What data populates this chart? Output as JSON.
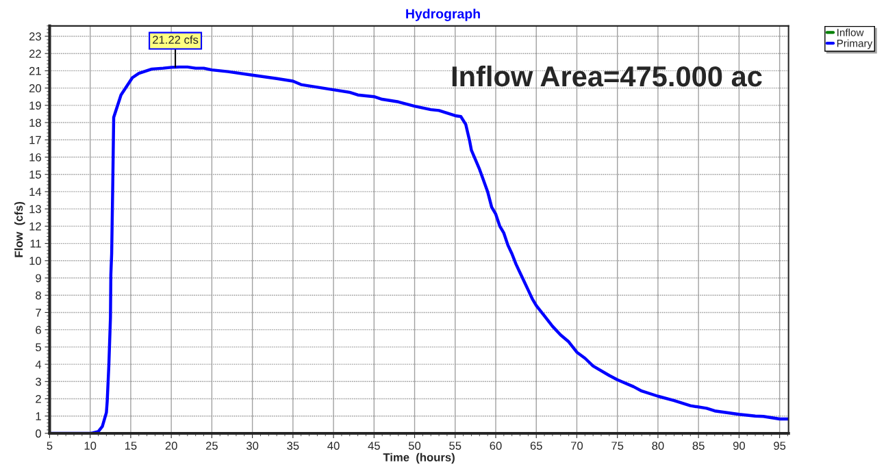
{
  "chart_data": {
    "type": "line",
    "title": "Hydrograph",
    "xlabel": "Time  (hours)",
    "ylabel": "Flow  (cfs)",
    "x": [
      5,
      10,
      10.3,
      11,
      11.5,
      12,
      12.1,
      12.3,
      12.5,
      12.55,
      12.65,
      12.8,
      12.9,
      13.8,
      15.2,
      16,
      17.6,
      19,
      20,
      21,
      22,
      23,
      24,
      25,
      27,
      30,
      33,
      35,
      36,
      40,
      42,
      43,
      45,
      46,
      48,
      50,
      52,
      53,
      55,
      55.7,
      56.3,
      56.8,
      57,
      58,
      59,
      59.5,
      60,
      60.5,
      61,
      61.5,
      62,
      62.5,
      63,
      63.5,
      64,
      64.5,
      65,
      66,
      67,
      68,
      69,
      70,
      71,
      72,
      74,
      75,
      77,
      78,
      80,
      82,
      84,
      86,
      87,
      90,
      92,
      93,
      95,
      96.1
    ],
    "series": [
      {
        "name": "Inflow",
        "color": "#008000",
        "values": [
          null,
          null,
          null,
          null,
          null,
          null,
          null,
          null,
          null,
          null,
          null,
          null,
          null,
          null,
          null,
          null,
          null,
          null,
          null,
          null,
          null,
          null,
          null,
          null,
          null,
          null,
          null,
          null,
          null,
          null,
          null,
          null,
          null,
          null,
          null,
          null,
          null,
          null,
          null,
          null,
          null,
          null,
          null,
          null,
          null,
          null,
          null,
          null,
          null,
          null,
          null,
          null,
          null,
          null,
          null,
          null,
          null,
          null,
          null,
          null,
          null,
          null,
          null,
          null,
          null,
          null,
          null,
          null,
          null,
          null,
          null,
          null,
          null,
          null,
          null,
          null,
          null,
          null
        ]
      },
      {
        "name": "Primary",
        "color": "#0000ff",
        "values": [
          0,
          0,
          0.02,
          0.1,
          0.4,
          1.2,
          1.85,
          3.9,
          6.7,
          9.2,
          10.4,
          14.9,
          18.3,
          19.6,
          20.6,
          20.85,
          21.1,
          21.15,
          21.2,
          21.22,
          21.22,
          21.15,
          21.15,
          21.05,
          20.95,
          20.75,
          20.55,
          20.4,
          20.2,
          19.9,
          19.75,
          19.6,
          19.5,
          19.35,
          19.2,
          18.95,
          18.75,
          18.7,
          18.4,
          18.35,
          17.9,
          16.9,
          16.4,
          15.3,
          14.0,
          13.1,
          12.7,
          12.0,
          11.6,
          10.9,
          10.4,
          9.8,
          9.3,
          8.8,
          8.3,
          7.8,
          7.4,
          6.8,
          6.2,
          5.7,
          5.3,
          4.7,
          4.35,
          3.9,
          3.35,
          3.1,
          2.7,
          2.45,
          2.15,
          1.9,
          1.6,
          1.45,
          1.3,
          1.1,
          1.0,
          0.98,
          0.83,
          0.83
        ]
      }
    ],
    "xlim": [
      5,
      96.1
    ],
    "xticks": [
      5,
      10,
      15,
      20,
      25,
      30,
      35,
      40,
      45,
      50,
      55,
      60,
      65,
      70,
      75,
      80,
      85,
      90,
      95
    ],
    "ylim": [
      0,
      23.6
    ],
    "yticks": [
      0,
      1,
      2,
      3,
      4,
      5,
      6,
      7,
      8,
      9,
      10,
      11,
      12,
      13,
      14,
      15,
      16,
      17,
      18,
      19,
      20,
      21,
      22,
      23
    ],
    "annotations": [
      {
        "text": "21.22 cfs",
        "x": 20.5,
        "y": 21.22
      },
      "Inflow Area=475.000 ac"
    ],
    "grid": true,
    "legend": "top right",
    "marker": "none",
    "line_style": "solid"
  }
}
